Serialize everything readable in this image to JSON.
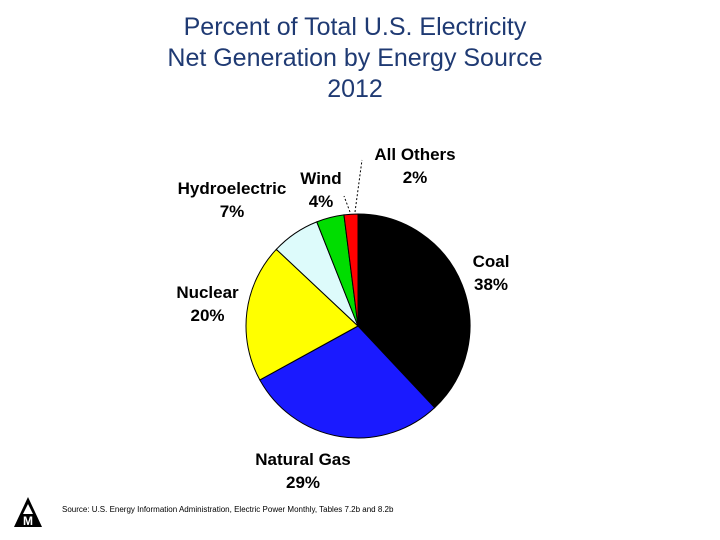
{
  "title": {
    "line1": "Percent of Total U.S. Electricity",
    "line2": "Net Generation by Energy Source",
    "line3": "2012"
  },
  "source": "Source: U.S. Energy Information Administration, Electric Power Monthly, Tables 7.2b and 8.2b",
  "logo_icon": "mountain-m-logo-icon",
  "chart_data": {
    "type": "pie",
    "slices": [
      {
        "label": "Coal",
        "value": 38,
        "value_text": "38%",
        "color": "#000000"
      },
      {
        "label": "Natural Gas",
        "value": 29,
        "value_text": "29%",
        "color": "#1a1aff"
      },
      {
        "label": "Nuclear",
        "value": 20,
        "value_text": "20%",
        "color": "#ffff00"
      },
      {
        "label": "Hydroelectric",
        "value": 7,
        "value_text": "7%",
        "color": "#ddfbfb"
      },
      {
        "label": "Wind",
        "value": 4,
        "value_text": "4%",
        "color": "#00dd00"
      },
      {
        "label": "All Others",
        "value": 2,
        "value_text": "2%",
        "color": "#ff0000"
      }
    ],
    "start_angle_deg": 0,
    "direction": "clockwise"
  }
}
